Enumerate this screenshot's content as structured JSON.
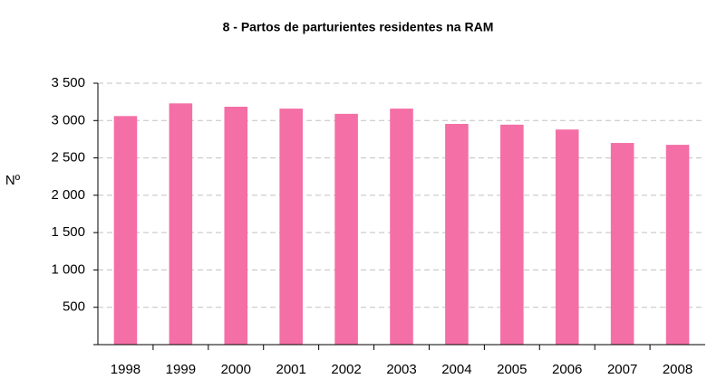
{
  "chart_data": {
    "type": "bar",
    "title": "8 - Partos de parturientes residentes na RAM",
    "y_label": "Nº",
    "categories": [
      "1998",
      "1999",
      "2000",
      "2001",
      "2002",
      "2003",
      "2004",
      "2005",
      "2006",
      "2007",
      "2008"
    ],
    "values": [
      3060,
      3230,
      3185,
      3160,
      3090,
      3160,
      2955,
      2945,
      2880,
      2700,
      2675
    ],
    "color": "#f46fa6",
    "ylim": [
      0,
      3500
    ],
    "yticks": [
      500,
      {
        "value": 1000,
        "label": "1 000"
      },
      {
        "value": 1500,
        "label": "1 500"
      },
      {
        "value": 2000,
        "label": "2 000"
      },
      {
        "value": 2500,
        "label": "2 500"
      },
      {
        "value": 3000,
        "label": "3 000"
      },
      {
        "value": 3500,
        "label": "3 500"
      }
    ],
    "grid": true
  }
}
